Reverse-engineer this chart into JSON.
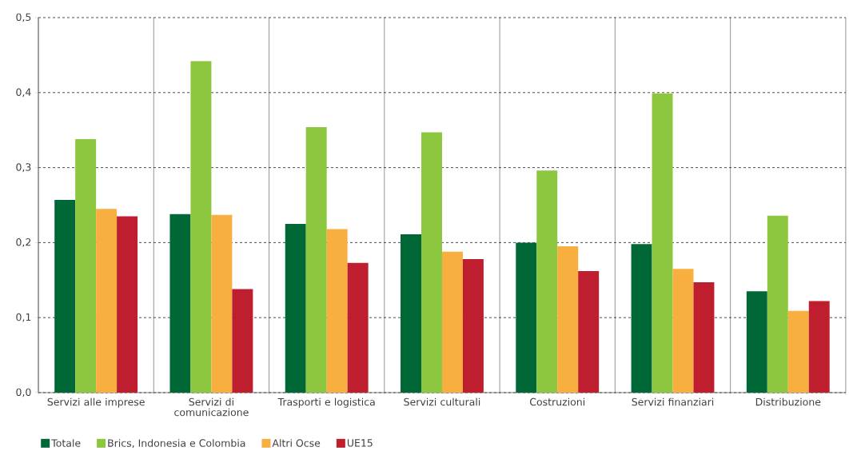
{
  "chart_data": {
    "type": "bar",
    "categories": [
      "Servizi alle imprese",
      "Servizi di comunicazione",
      "Trasporti e logistica",
      "Servizi culturali",
      "Costruzioni",
      "Servizi finanziari",
      "Distribuzione"
    ],
    "series": [
      {
        "name": "Totale",
        "color": "#006837",
        "values": [
          0.257,
          0.238,
          0.225,
          0.211,
          0.2,
          0.198,
          0.135
        ]
      },
      {
        "name": "Brics, Indonesia e Colombia",
        "color": "#8dc63f",
        "values": [
          0.338,
          0.442,
          0.354,
          0.347,
          0.296,
          0.399,
          0.236
        ]
      },
      {
        "name": "Altri Ocse",
        "color": "#f9ae40",
        "values": [
          0.245,
          0.237,
          0.218,
          0.188,
          0.195,
          0.165,
          0.109
        ]
      },
      {
        "name": "UE15",
        "color": "#be1e2d",
        "values": [
          0.235,
          0.138,
          0.173,
          0.178,
          0.162,
          0.147,
          0.122
        ]
      }
    ],
    "ylim": [
      0,
      0.5
    ],
    "yticks": [
      {
        "value": 0,
        "label": "0,0"
      },
      {
        "value": 0.1,
        "label": "0,1"
      },
      {
        "value": 0.2,
        "label": "0,2"
      },
      {
        "value": 0.3,
        "label": "0,3"
      },
      {
        "value": 0.4,
        "label": "0,4"
      },
      {
        "value": 0.5,
        "label": "0,5"
      }
    ],
    "grid": "y",
    "legend": "bottom left"
  }
}
